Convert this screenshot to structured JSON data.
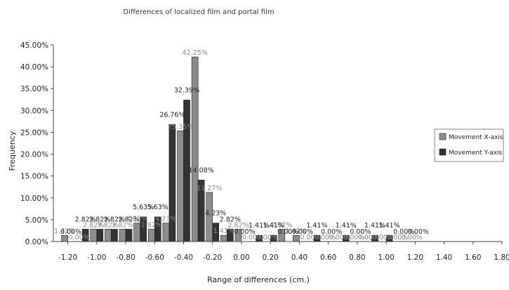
{
  "chart_data": {
    "type": "bar",
    "title": "Differences of localized film and portal film",
    "xlabel": "Range of differences (cm.)",
    "ylabel": "Frequency",
    "ylim": [
      0,
      45
    ],
    "xlim": [
      -1.3,
      1.8
    ],
    "y_ticks": [
      "0.00%",
      "5.00%",
      "10.00%",
      "15.00%",
      "20.00%",
      "25.00%",
      "30.00%",
      "35.00%",
      "40.00%",
      "45.00%"
    ],
    "x_ticks": [
      "-1.20",
      "-1.00",
      "-0.80",
      "-0.60",
      "-0.40",
      "-0.20",
      "0.00",
      "0.20",
      "0.40",
      "0.60",
      "0.80",
      "1.00",
      "1.20",
      "1.40",
      "1.60",
      "1.80"
    ],
    "grid": false,
    "legend_position": "right",
    "categories": [
      -1.2,
      -1.1,
      -1.0,
      -0.9,
      -0.8,
      -0.7,
      -0.6,
      -0.5,
      -0.4,
      -0.3,
      -0.2,
      -0.1,
      0.0,
      0.1,
      0.2,
      0.3,
      0.4,
      0.5,
      0.6,
      0.7,
      0.8,
      0.9,
      1.0,
      1.1,
      1.2
    ],
    "series": [
      {
        "name": "Movement X-axis",
        "color": "#8c8c8c",
        "values": [
          1.41,
          0.0,
          2.82,
          2.82,
          2.82,
          4.23,
          2.82,
          4.23,
          25.35,
          42.25,
          11.27,
          1.41,
          2.82,
          0.0,
          0.0,
          2.82,
          1.41,
          0.0,
          0.0,
          0.0,
          0.0,
          0.0,
          0.0,
          0.0,
          0.0
        ],
        "labels": [
          "1.41%",
          "0.00%",
          "2.82%",
          "2.82%",
          "2.82%",
          "4.23%",
          "2.82%",
          "4.23%",
          "25.35%",
          "42.25%",
          "11.27%",
          "1.41%",
          "2.82%",
          "0.00%",
          "0.00%",
          "2.82%",
          "1.41%",
          "0.00%",
          "0.00%",
          "0.00%",
          "0.00%",
          "0.00%",
          "0.00%",
          "0.00%",
          "0.00%"
        ]
      },
      {
        "name": "Movement Y-axis",
        "color": "#333333",
        "values": [
          0.0,
          2.82,
          2.82,
          2.82,
          2.82,
          5.63,
          5.63,
          26.76,
          32.39,
          14.08,
          4.23,
          2.82,
          0.0,
          1.41,
          1.41,
          0.0,
          0.0,
          1.41,
          0.0,
          1.41,
          0.0,
          1.41,
          1.41,
          0.0,
          0.0
        ],
        "labels": [
          "0.00%",
          "2.82%",
          "2.82%",
          "2.82%",
          "2.82%",
          "5.63%",
          "5.63%",
          "26.76%",
          "32.39%",
          "14.08%",
          "4.23%",
          "2.82%",
          "0.00%",
          "1.41%",
          "1.41%",
          "0.00%",
          "0.00%",
          "1.41%",
          "0.00%",
          "1.41%",
          "0.00%",
          "1.41%",
          "1.41%",
          "0.00%",
          "0.00%"
        ]
      }
    ]
  }
}
